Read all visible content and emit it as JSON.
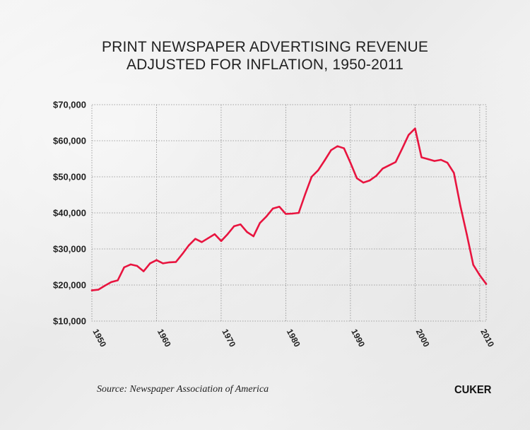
{
  "footer": {
    "source": "Source: Newspaper Association of America",
    "logo": "CUKER"
  },
  "chart_data": {
    "type": "line",
    "title": [
      "PRINT NEWSPAPER ADVERTISING REVENUE",
      "ADJUSTED FOR INFLATION, 1950-2011"
    ],
    "xlabel": "",
    "ylabel": "",
    "xlim": [
      1950,
      2011
    ],
    "ylim": [
      10000,
      70000
    ],
    "grid": true,
    "x_ticks": [
      "1950",
      "1960",
      "1970",
      "1980",
      "1990",
      "2000",
      "2010"
    ],
    "y_ticks": [
      "$10,000",
      "$20,000",
      "$30,000",
      "$40,000",
      "$50,000",
      "$60,000",
      "$70,000"
    ],
    "series_color": "#e8143f",
    "series": [
      {
        "x": [
          1950,
          1951,
          1952,
          1953,
          1954,
          1955,
          1956,
          1957,
          1958,
          1959,
          1960,
          1961,
          1962,
          1963,
          1964,
          1965,
          1966,
          1967,
          1968,
          1969,
          1970,
          1971,
          1972,
          1973,
          1974,
          1975,
          1976,
          1977,
          1978,
          1979,
          1980,
          1981,
          1982,
          1983,
          1984,
          1985,
          1986,
          1987,
          1988,
          1989,
          1990,
          1991,
          1992,
          1993,
          1994,
          1995,
          1996,
          1997,
          1998,
          1999,
          2000,
          2001,
          2002,
          2003,
          2004,
          2005,
          2006,
          2007,
          2008,
          2009,
          2010,
          2011
        ],
        "y": [
          18500,
          18700,
          19800,
          20800,
          21300,
          24900,
          25700,
          25300,
          23800,
          26000,
          26900,
          26000,
          26300,
          26400,
          28600,
          31000,
          32800,
          31900,
          33000,
          34100,
          32200,
          34100,
          36300,
          36800,
          34700,
          33500,
          37200,
          39000,
          41200,
          41700,
          39700,
          39800,
          40000,
          45200,
          50000,
          51800,
          54500,
          57400,
          58500,
          57900,
          53900,
          49600,
          48400,
          49000,
          50300,
          52300,
          53200,
          54100,
          57800,
          61600,
          63400,
          55400,
          54900,
          54400,
          54700,
          53900,
          51100,
          42000,
          34000,
          25600,
          22700,
          20300
        ]
      }
    ]
  }
}
